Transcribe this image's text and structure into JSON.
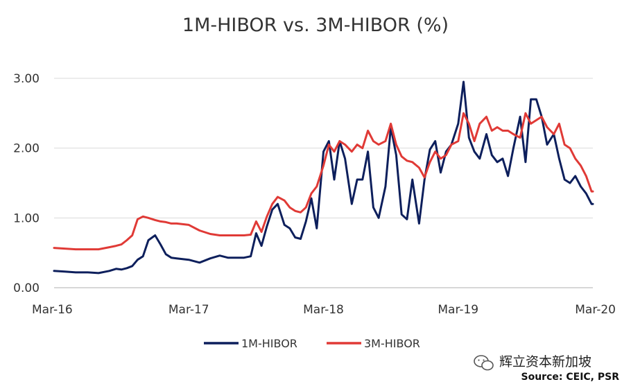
{
  "chart_data": {
    "type": "line",
    "title": "1M-HIBOR vs. 3M-HIBOR (%)",
    "xlabel": "",
    "ylabel": "",
    "x_ticks": [
      "Mar-16",
      "Mar-17",
      "Mar-18",
      "Mar-19",
      "Mar-20"
    ],
    "y_ticks": [
      "0.00",
      "1.00",
      "2.00",
      "3.00"
    ],
    "ylim": [
      0,
      3
    ],
    "grid": true,
    "legend_position": "bottom",
    "series": [
      {
        "name": "1M-HIBOR",
        "color": "#0d1f5c",
        "x": [
          2016.17,
          2016.25,
          2016.33,
          2016.42,
          2016.5,
          2016.58,
          2016.63,
          2016.67,
          2016.71,
          2016.75,
          2016.79,
          2016.83,
          2016.87,
          2016.92,
          2016.96,
          2017.0,
          2017.04,
          2017.08,
          2017.17,
          2017.25,
          2017.33,
          2017.4,
          2017.46,
          2017.5,
          2017.58,
          2017.63,
          2017.67,
          2017.71,
          2017.75,
          2017.79,
          2017.83,
          2017.88,
          2017.92,
          2017.96,
          2018.0,
          2018.04,
          2018.08,
          2018.12,
          2018.17,
          2018.21,
          2018.25,
          2018.29,
          2018.33,
          2018.38,
          2018.42,
          2018.46,
          2018.5,
          2018.54,
          2018.58,
          2018.63,
          2018.67,
          2018.71,
          2018.75,
          2018.79,
          2018.83,
          2018.88,
          2018.92,
          2018.96,
          2019.0,
          2019.04,
          2019.08,
          2019.12,
          2019.17,
          2019.21,
          2019.25,
          2019.29,
          2019.33,
          2019.38,
          2019.42,
          2019.46,
          2019.5,
          2019.54,
          2019.58,
          2019.63,
          2019.67,
          2019.71,
          2019.75,
          2019.79,
          2019.83,
          2019.88,
          2019.92,
          2019.96,
          2020.0,
          2020.04,
          2020.08,
          2020.12,
          2020.16,
          2020.17
        ],
        "y": [
          0.24,
          0.23,
          0.22,
          0.22,
          0.21,
          0.24,
          0.27,
          0.26,
          0.28,
          0.31,
          0.4,
          0.45,
          0.68,
          0.75,
          0.62,
          0.48,
          0.43,
          0.42,
          0.4,
          0.36,
          0.42,
          0.46,
          0.43,
          0.43,
          0.43,
          0.45,
          0.78,
          0.6,
          0.88,
          1.12,
          1.2,
          0.9,
          0.85,
          0.72,
          0.7,
          0.95,
          1.28,
          0.85,
          1.95,
          2.1,
          1.55,
          2.1,
          1.85,
          1.2,
          1.55,
          1.55,
          1.95,
          1.15,
          1.0,
          1.45,
          2.3,
          1.9,
          1.05,
          0.98,
          1.55,
          0.92,
          1.55,
          1.98,
          2.1,
          1.65,
          1.95,
          2.05,
          2.35,
          2.95,
          2.15,
          1.95,
          1.85,
          2.2,
          1.9,
          1.8,
          1.85,
          1.6,
          2.0,
          2.45,
          1.8,
          2.7,
          2.7,
          2.45,
          2.05,
          2.2,
          1.85,
          1.55,
          1.5,
          1.6,
          1.45,
          1.35,
          1.2,
          1.2
        ]
      },
      {
        "name": "3M-HIBOR",
        "color": "#e03a36",
        "x": [
          2016.17,
          2016.25,
          2016.33,
          2016.42,
          2016.5,
          2016.58,
          2016.63,
          2016.67,
          2016.71,
          2016.75,
          2016.79,
          2016.83,
          2016.87,
          2016.92,
          2016.96,
          2017.0,
          2017.04,
          2017.08,
          2017.17,
          2017.25,
          2017.33,
          2017.4,
          2017.46,
          2017.5,
          2017.58,
          2017.63,
          2017.67,
          2017.71,
          2017.75,
          2017.79,
          2017.83,
          2017.88,
          2017.92,
          2017.96,
          2018.0,
          2018.04,
          2018.08,
          2018.12,
          2018.17,
          2018.21,
          2018.25,
          2018.29,
          2018.33,
          2018.38,
          2018.42,
          2018.46,
          2018.5,
          2018.54,
          2018.58,
          2018.63,
          2018.67,
          2018.71,
          2018.75,
          2018.79,
          2018.83,
          2018.88,
          2018.92,
          2018.96,
          2019.0,
          2019.04,
          2019.08,
          2019.12,
          2019.17,
          2019.21,
          2019.25,
          2019.29,
          2019.33,
          2019.38,
          2019.42,
          2019.46,
          2019.5,
          2019.54,
          2019.58,
          2019.63,
          2019.67,
          2019.71,
          2019.75,
          2019.79,
          2019.83,
          2019.88,
          2019.92,
          2019.96,
          2020.0,
          2020.04,
          2020.08,
          2020.12,
          2020.16,
          2020.17
        ],
        "y": [
          0.57,
          0.56,
          0.55,
          0.55,
          0.55,
          0.58,
          0.6,
          0.62,
          0.68,
          0.75,
          0.98,
          1.02,
          1.0,
          0.97,
          0.95,
          0.94,
          0.92,
          0.92,
          0.9,
          0.82,
          0.77,
          0.75,
          0.75,
          0.75,
          0.75,
          0.76,
          0.95,
          0.8,
          1.02,
          1.2,
          1.3,
          1.25,
          1.15,
          1.1,
          1.08,
          1.15,
          1.35,
          1.45,
          1.75,
          2.05,
          1.95,
          2.1,
          2.05,
          1.95,
          2.05,
          2.0,
          2.25,
          2.1,
          2.05,
          2.1,
          2.35,
          2.05,
          1.88,
          1.82,
          1.8,
          1.72,
          1.58,
          1.8,
          1.95,
          1.85,
          1.9,
          2.05,
          2.1,
          2.5,
          2.35,
          2.1,
          2.35,
          2.45,
          2.25,
          2.3,
          2.25,
          2.25,
          2.2,
          2.15,
          2.5,
          2.35,
          2.4,
          2.45,
          2.3,
          2.2,
          2.35,
          2.05,
          2.0,
          1.85,
          1.75,
          1.6,
          1.38,
          1.38
        ]
      }
    ],
    "source": "Source: CEIC, PSR",
    "watermark": "辉立资本新加坡"
  }
}
